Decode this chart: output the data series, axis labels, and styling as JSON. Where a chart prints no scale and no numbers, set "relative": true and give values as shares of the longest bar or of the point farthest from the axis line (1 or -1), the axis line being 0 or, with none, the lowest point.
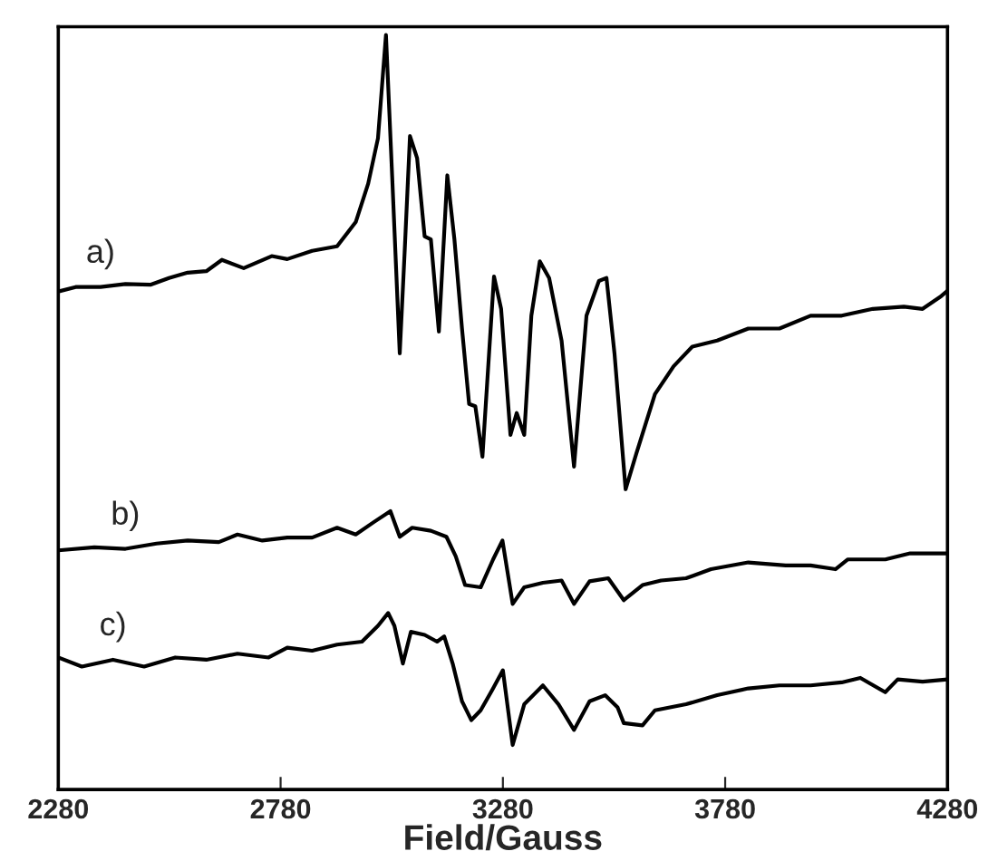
{
  "chart_data": {
    "type": "line",
    "relative": true,
    "xlabel": "Field/Gauss",
    "xlim": [
      2280,
      4280
    ],
    "xticks": [
      2280,
      2780,
      3280,
      3780,
      4280
    ],
    "grid": false,
    "legend": false,
    "marker": "none",
    "line_style": "solid",
    "tick_labels": "x",
    "series": [
      {
        "name": "a)",
        "color": "#000000",
        "x": [
          2280,
          2319,
          2375,
          2431,
          2487,
          2529,
          2571,
          2613,
          2648,
          2697,
          2760,
          2795,
          2851,
          2907,
          2949,
          2977,
          2999,
          3017,
          3031,
          3048,
          3059,
          3071,
          3087,
          3104,
          3118,
          3136,
          3155,
          3171,
          3188,
          3204,
          3218,
          3234,
          3260,
          3276,
          3297,
          3311,
          3328,
          3344,
          3363,
          3384,
          3412,
          3440,
          3468,
          3496,
          3513,
          3531,
          3556,
          3580,
          3622,
          3664,
          3706,
          3762,
          3832,
          3902,
          3972,
          4042,
          4112,
          4182,
          4224,
          4266,
          4280
        ],
        "values": [
          0.66,
          0.666,
          0.666,
          0.67,
          0.669,
          0.678,
          0.685,
          0.687,
          0.702,
          0.691,
          0.707,
          0.703,
          0.714,
          0.72,
          0.752,
          0.803,
          0.863,
          1.0,
          0.812,
          0.578,
          0.712,
          0.866,
          0.837,
          0.733,
          0.729,
          0.607,
          0.814,
          0.729,
          0.611,
          0.511,
          0.508,
          0.441,
          0.68,
          0.637,
          0.47,
          0.499,
          0.47,
          0.628,
          0.7,
          0.678,
          0.595,
          0.428,
          0.628,
          0.674,
          0.678,
          0.578,
          0.398,
          0.445,
          0.524,
          0.561,
          0.587,
          0.595,
          0.611,
          0.611,
          0.628,
          0.628,
          0.637,
          0.64,
          0.637,
          0.654,
          0.661
        ]
      },
      {
        "name": "b)",
        "color": "#000000",
        "x": [
          2280,
          2361,
          2431,
          2501,
          2571,
          2641,
          2683,
          2739,
          2795,
          2851,
          2907,
          2949,
          2991,
          3027,
          3048,
          3076,
          3118,
          3153,
          3174,
          3195,
          3230,
          3258,
          3279,
          3302,
          3328,
          3370,
          3412,
          3440,
          3475,
          3517,
          3552,
          3594,
          3636,
          3692,
          3748,
          3832,
          3916,
          3972,
          4028,
          4056,
          4140,
          4196,
          4280
        ],
        "values": [
          0.317,
          0.321,
          0.319,
          0.326,
          0.33,
          0.328,
          0.338,
          0.33,
          0.334,
          0.334,
          0.347,
          0.338,
          0.355,
          0.369,
          0.335,
          0.347,
          0.343,
          0.335,
          0.309,
          0.271,
          0.268,
          0.305,
          0.33,
          0.246,
          0.268,
          0.274,
          0.277,
          0.246,
          0.276,
          0.28,
          0.251,
          0.271,
          0.277,
          0.28,
          0.292,
          0.301,
          0.297,
          0.297,
          0.292,
          0.305,
          0.305,
          0.313,
          0.313
        ]
      },
      {
        "name": "c)",
        "color": "#000000",
        "x": [
          2280,
          2333,
          2403,
          2473,
          2543,
          2613,
          2683,
          2753,
          2795,
          2851,
          2907,
          2963,
          2999,
          3022,
          3036,
          3055,
          3073,
          3104,
          3132,
          3148,
          3167,
          3188,
          3209,
          3230,
          3258,
          3280,
          3302,
          3328,
          3370,
          3405,
          3440,
          3475,
          3510,
          3538,
          3552,
          3594,
          3622,
          3692,
          3762,
          3832,
          3902,
          3972,
          4042,
          4084,
          4140,
          4168,
          4224,
          4280
        ],
        "values": [
          0.175,
          0.163,
          0.172,
          0.163,
          0.175,
          0.172,
          0.18,
          0.175,
          0.188,
          0.184,
          0.192,
          0.196,
          0.217,
          0.234,
          0.217,
          0.167,
          0.209,
          0.205,
          0.196,
          0.203,
          0.167,
          0.117,
          0.092,
          0.105,
          0.134,
          0.158,
          0.059,
          0.113,
          0.138,
          0.113,
          0.079,
          0.117,
          0.125,
          0.109,
          0.088,
          0.085,
          0.105,
          0.113,
          0.125,
          0.134,
          0.138,
          0.138,
          0.142,
          0.148,
          0.129,
          0.146,
          0.143,
          0.146
        ]
      }
    ]
  }
}
